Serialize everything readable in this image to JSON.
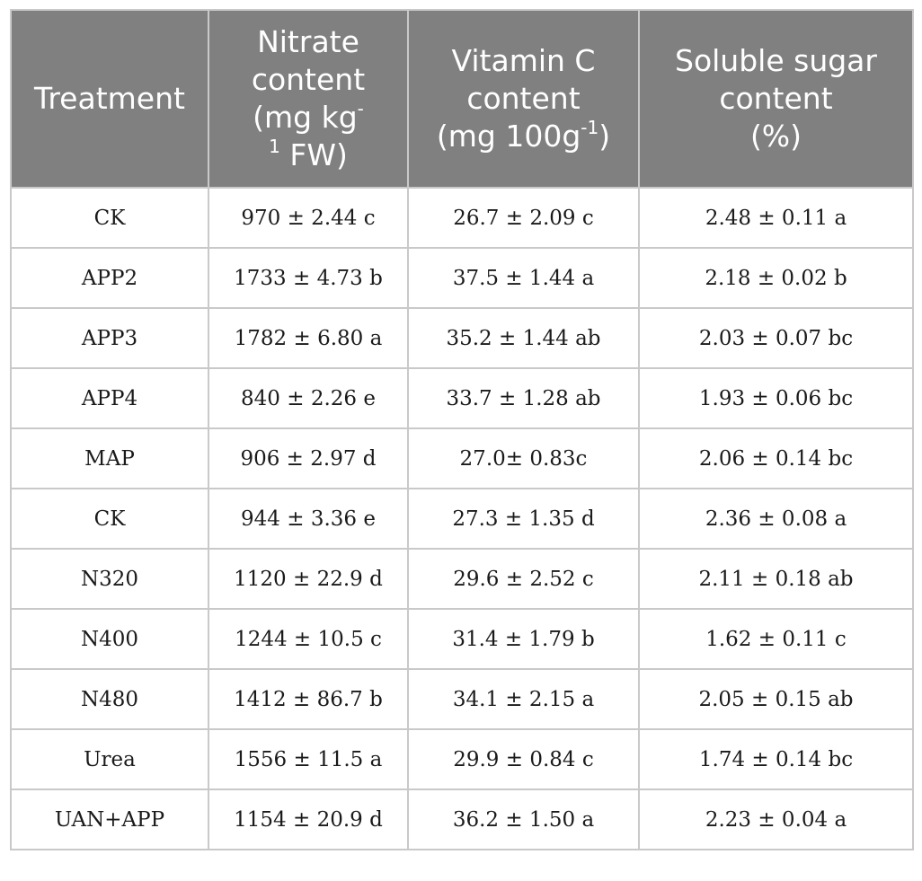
{
  "headers": {
    "treatment": "Treatment",
    "nitrate": {
      "l1": "Nitrate",
      "l2": "content",
      "l3a": "(mg kg",
      "l3sup": "-",
      "l4sup": "1",
      "l4b": " FW)"
    },
    "vitc": {
      "l1": "Vitamin C",
      "l2": "content",
      "l3a": "(mg 100g",
      "l3sup": "-1",
      "l3b": ")"
    },
    "sugar": {
      "l1": "Soluble sugar",
      "l2": "content",
      "l3": "(%)"
    }
  },
  "rows": [
    {
      "treatment": "CK",
      "nitrate": "970 ± 2.44 c",
      "vitc": "26.7 ± 2.09 c",
      "sugar": "2.48 ± 0.11 a"
    },
    {
      "treatment": "APP2",
      "nitrate": "1733 ± 4.73 b",
      "vitc": "37.5 ± 1.44 a",
      "sugar": "2.18 ± 0.02 b"
    },
    {
      "treatment": "APP3",
      "nitrate": "1782 ± 6.80 a",
      "vitc": "35.2 ± 1.44 ab",
      "sugar": "2.03 ± 0.07 bc"
    },
    {
      "treatment": "APP4",
      "nitrate": "840 ± 2.26 e",
      "vitc": "33.7 ± 1.28 ab",
      "sugar": "1.93 ± 0.06 bc"
    },
    {
      "treatment": "MAP",
      "nitrate": "906 ± 2.97 d",
      "vitc": "27.0± 0.83c",
      "sugar": "2.06 ± 0.14 bc"
    },
    {
      "treatment": "CK",
      "nitrate": "944 ± 3.36 e",
      "vitc": "27.3 ± 1.35 d",
      "sugar": "2.36 ± 0.08 a"
    },
    {
      "treatment": "N320",
      "nitrate": "1120 ± 22.9 d",
      "vitc": "29.6 ± 2.52 c",
      "sugar": "2.11 ± 0.18 ab"
    },
    {
      "treatment": "N400",
      "nitrate": "1244 ± 10.5 c",
      "vitc": "31.4 ± 1.79 b",
      "sugar": "1.62 ± 0.11 c"
    },
    {
      "treatment": "N480",
      "nitrate": "1412 ± 86.7 b",
      "vitc": "34.1 ± 2.15 a",
      "sugar": "2.05 ± 0.15 ab"
    },
    {
      "treatment": "Urea",
      "nitrate": "1556 ± 11.5 a",
      "vitc": "29.9 ± 0.84 c",
      "sugar": "1.74 ± 0.14 bc"
    },
    {
      "treatment": "UAN+APP",
      "nitrate": "1154 ± 20.9 d",
      "vitc": "36.2 ± 1.50 a",
      "sugar": "2.23 ± 0.04 a"
    }
  ]
}
